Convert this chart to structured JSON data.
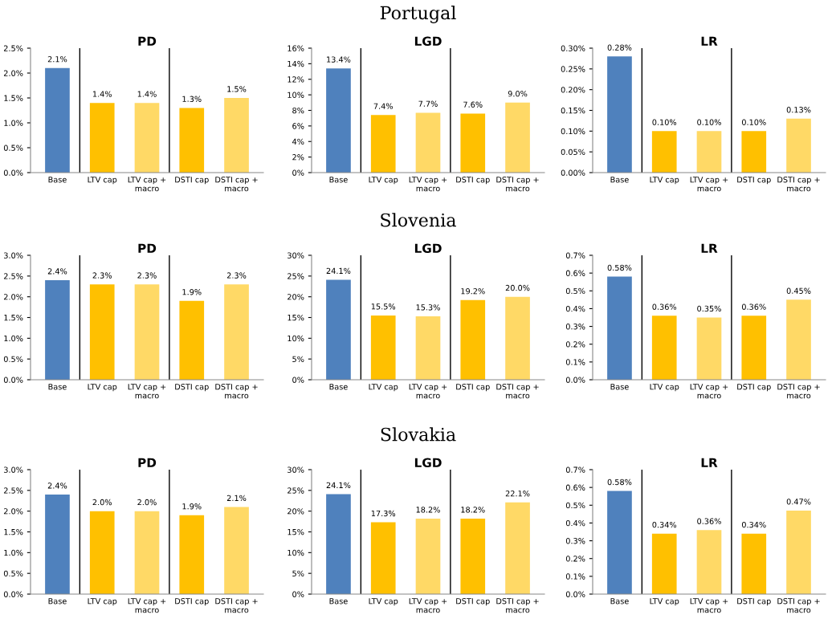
{
  "chart_data": [
    {
      "type": "bar",
      "subtitle": null,
      "title": "PD",
      "categories": [
        "Base",
        "LTV cap",
        "LTV cap +\nmacro",
        "DSTI cap",
        "DSTI cap +\nmacro"
      ],
      "values": [
        2.1,
        1.4,
        1.4,
        1.3,
        1.5
      ],
      "value_labels": [
        "2.1%",
        "1.4%",
        "1.4%",
        "1.3%",
        "1.5%"
      ],
      "colors": [
        "#4f81bd",
        "#ffc000",
        "#ffd966",
        "#ffc000",
        "#ffd966"
      ],
      "ylim": [
        0,
        2.5
      ],
      "yticks": [
        {
          "value": 0,
          "label": "0.0%"
        },
        {
          "value": 0.5,
          "label": "0.5%"
        },
        {
          "value": 1.0,
          "label": "1.0%"
        },
        {
          "value": 1.5,
          "label": "1.5%"
        },
        {
          "value": 2.0,
          "label": "2.0%"
        },
        {
          "value": 2.5,
          "label": "2.5%"
        }
      ]
    },
    {
      "type": "bar",
      "subtitle": "Portugal",
      "title": "LGD",
      "categories": [
        "Base",
        "LTV cap",
        "LTV cap +\nmacro",
        "DSTI cap",
        "DSTI cap +\nmacro"
      ],
      "values": [
        13.4,
        7.4,
        7.7,
        7.6,
        9.0
      ],
      "value_labels": [
        "13.4%",
        "7.4%",
        "7.7%",
        "7.6%",
        "9.0%"
      ],
      "colors": [
        "#4f81bd",
        "#ffc000",
        "#ffd966",
        "#ffc000",
        "#ffd966"
      ],
      "ylim": [
        0,
        16
      ],
      "yticks": [
        {
          "value": 0,
          "label": "0%"
        },
        {
          "value": 2,
          "label": "2%"
        },
        {
          "value": 4,
          "label": "4%"
        },
        {
          "value": 6,
          "label": "6%"
        },
        {
          "value": 8,
          "label": "8%"
        },
        {
          "value": 10,
          "label": "10%"
        },
        {
          "value": 12,
          "label": "12%"
        },
        {
          "value": 14,
          "label": "14%"
        },
        {
          "value": 16,
          "label": "16%"
        }
      ]
    },
    {
      "type": "bar",
      "subtitle": null,
      "title": "LR",
      "categories": [
        "Base",
        "LTV cap",
        "LTV cap +\nmacro",
        "DSTI cap",
        "DSTI cap +\nmacro"
      ],
      "values": [
        0.28,
        0.1,
        0.1,
        0.1,
        0.13
      ],
      "value_labels": [
        "0.28%",
        "0.10%",
        "0.10%",
        "0.10%",
        "0.13%"
      ],
      "colors": [
        "#4f81bd",
        "#ffc000",
        "#ffd966",
        "#ffc000",
        "#ffd966"
      ],
      "ylim": [
        0,
        0.3
      ],
      "yticks": [
        {
          "value": 0,
          "label": "0.00%"
        },
        {
          "value": 0.05,
          "label": "0.05%"
        },
        {
          "value": 0.1,
          "label": "0.10%"
        },
        {
          "value": 0.15,
          "label": "0.15%"
        },
        {
          "value": 0.2,
          "label": "0.20%"
        },
        {
          "value": 0.25,
          "label": "0.25%"
        },
        {
          "value": 0.3,
          "label": "0.30%"
        }
      ]
    },
    {
      "type": "bar",
      "subtitle": null,
      "title": "PD",
      "categories": [
        "Base",
        "LTV cap",
        "LTV cap +\nmacro",
        "DSTI cap",
        "DSTI cap +\nmacro"
      ],
      "values": [
        2.4,
        2.3,
        2.3,
        1.9,
        2.3
      ],
      "value_labels": [
        "2.4%",
        "2.3%",
        "2.3%",
        "1.9%",
        "2.3%"
      ],
      "colors": [
        "#4f81bd",
        "#ffc000",
        "#ffd966",
        "#ffc000",
        "#ffd966"
      ],
      "ylim": [
        0,
        3.0
      ],
      "yticks": [
        {
          "value": 0,
          "label": "0.0%"
        },
        {
          "value": 0.5,
          "label": "0.5%"
        },
        {
          "value": 1.0,
          "label": "1.0%"
        },
        {
          "value": 1.5,
          "label": "1.5%"
        },
        {
          "value": 2.0,
          "label": "2.0%"
        },
        {
          "value": 2.5,
          "label": "2.5%"
        },
        {
          "value": 3.0,
          "label": "3.0%"
        }
      ]
    },
    {
      "type": "bar",
      "subtitle": "Slovenia",
      "title": "LGD",
      "categories": [
        "Base",
        "LTV cap",
        "LTV cap +\nmacro",
        "DSTI cap",
        "DSTI cap +\nmacro"
      ],
      "values": [
        24.1,
        15.5,
        15.3,
        19.2,
        20.0
      ],
      "value_labels": [
        "24.1%",
        "15.5%",
        "15.3%",
        "19.2%",
        "20.0%"
      ],
      "colors": [
        "#4f81bd",
        "#ffc000",
        "#ffd966",
        "#ffc000",
        "#ffd966"
      ],
      "ylim": [
        0,
        30
      ],
      "yticks": [
        {
          "value": 0,
          "label": "0%"
        },
        {
          "value": 5,
          "label": "5%"
        },
        {
          "value": 10,
          "label": "10%"
        },
        {
          "value": 15,
          "label": "15%"
        },
        {
          "value": 20,
          "label": "20%"
        },
        {
          "value": 25,
          "label": "25%"
        },
        {
          "value": 30,
          "label": "30%"
        }
      ]
    },
    {
      "type": "bar",
      "subtitle": null,
      "title": "LR",
      "categories": [
        "Base",
        "LTV cap",
        "LTV cap +\nmacro",
        "DSTI cap",
        "DSTI cap +\nmacro"
      ],
      "values": [
        0.58,
        0.36,
        0.35,
        0.36,
        0.45
      ],
      "value_labels": [
        "0.58%",
        "0.36%",
        "0.35%",
        "0.36%",
        "0.45%"
      ],
      "colors": [
        "#4f81bd",
        "#ffc000",
        "#ffd966",
        "#ffc000",
        "#ffd966"
      ],
      "ylim": [
        0,
        0.7
      ],
      "yticks": [
        {
          "value": 0,
          "label": "0.0%"
        },
        {
          "value": 0.1,
          "label": "0.1%"
        },
        {
          "value": 0.2,
          "label": "0.2%"
        },
        {
          "value": 0.3,
          "label": "0.3%"
        },
        {
          "value": 0.4,
          "label": "0.4%"
        },
        {
          "value": 0.5,
          "label": "0.5%"
        },
        {
          "value": 0.6,
          "label": "0.6%"
        },
        {
          "value": 0.7,
          "label": "0.7%"
        }
      ]
    },
    {
      "type": "bar",
      "subtitle": null,
      "title": "PD",
      "categories": [
        "Base",
        "LTV cap",
        "LTV cap +\nmacro",
        "DSTI cap",
        "DSTI cap +\nmacro"
      ],
      "values": [
        2.4,
        2.0,
        2.0,
        1.9,
        2.1
      ],
      "value_labels": [
        "2.4%",
        "2.0%",
        "2.0%",
        "1.9%",
        "2.1%"
      ],
      "colors": [
        "#4f81bd",
        "#ffc000",
        "#ffd966",
        "#ffc000",
        "#ffd966"
      ],
      "ylim": [
        0,
        3.0
      ],
      "yticks": [
        {
          "value": 0,
          "label": "0.0%"
        },
        {
          "value": 0.5,
          "label": "0.5%"
        },
        {
          "value": 1.0,
          "label": "1.0%"
        },
        {
          "value": 1.5,
          "label": "1.5%"
        },
        {
          "value": 2.0,
          "label": "2.0%"
        },
        {
          "value": 2.5,
          "label": "2.5%"
        },
        {
          "value": 3.0,
          "label": "3.0%"
        }
      ]
    },
    {
      "type": "bar",
      "subtitle": "Slovakia",
      "title": "LGD",
      "categories": [
        "Base",
        "LTV cap",
        "LTV cap +\nmacro",
        "DSTI cap",
        "DSTI cap +\nmacro"
      ],
      "values": [
        24.1,
        17.3,
        18.2,
        18.2,
        22.1
      ],
      "value_labels": [
        "24.1%",
        "17.3%",
        "18.2%",
        "18.2%",
        "22.1%"
      ],
      "colors": [
        "#4f81bd",
        "#ffc000",
        "#ffd966",
        "#ffc000",
        "#ffd966"
      ],
      "ylim": [
        0,
        30
      ],
      "yticks": [
        {
          "value": 0,
          "label": "0%"
        },
        {
          "value": 5,
          "label": "5%"
        },
        {
          "value": 10,
          "label": "10%"
        },
        {
          "value": 15,
          "label": "15%"
        },
        {
          "value": 20,
          "label": "20%"
        },
        {
          "value": 25,
          "label": "25%"
        },
        {
          "value": 30,
          "label": "30%"
        }
      ]
    },
    {
      "type": "bar",
      "subtitle": null,
      "title": "LR",
      "categories": [
        "Base",
        "LTV cap",
        "LTV cap +\nmacro",
        "DSTI cap",
        "DSTI cap +\nmacro"
      ],
      "values": [
        0.58,
        0.34,
        0.36,
        0.34,
        0.47
      ],
      "value_labels": [
        "0.58%",
        "0.34%",
        "0.36%",
        "0.34%",
        "0.47%"
      ],
      "colors": [
        "#4f81bd",
        "#ffc000",
        "#ffd966",
        "#ffc000",
        "#ffd966"
      ],
      "ylim": [
        0,
        0.7
      ],
      "yticks": [
        {
          "value": 0,
          "label": "0.0%"
        },
        {
          "value": 0.1,
          "label": "0.1%"
        },
        {
          "value": 0.2,
          "label": "0.2%"
        },
        {
          "value": 0.3,
          "label": "0.3%"
        },
        {
          "value": 0.4,
          "label": "0.4%"
        },
        {
          "value": 0.5,
          "label": "0.5%"
        },
        {
          "value": 0.6,
          "label": "0.6%"
        },
        {
          "value": 0.7,
          "label": "0.7%"
        }
      ]
    }
  ]
}
